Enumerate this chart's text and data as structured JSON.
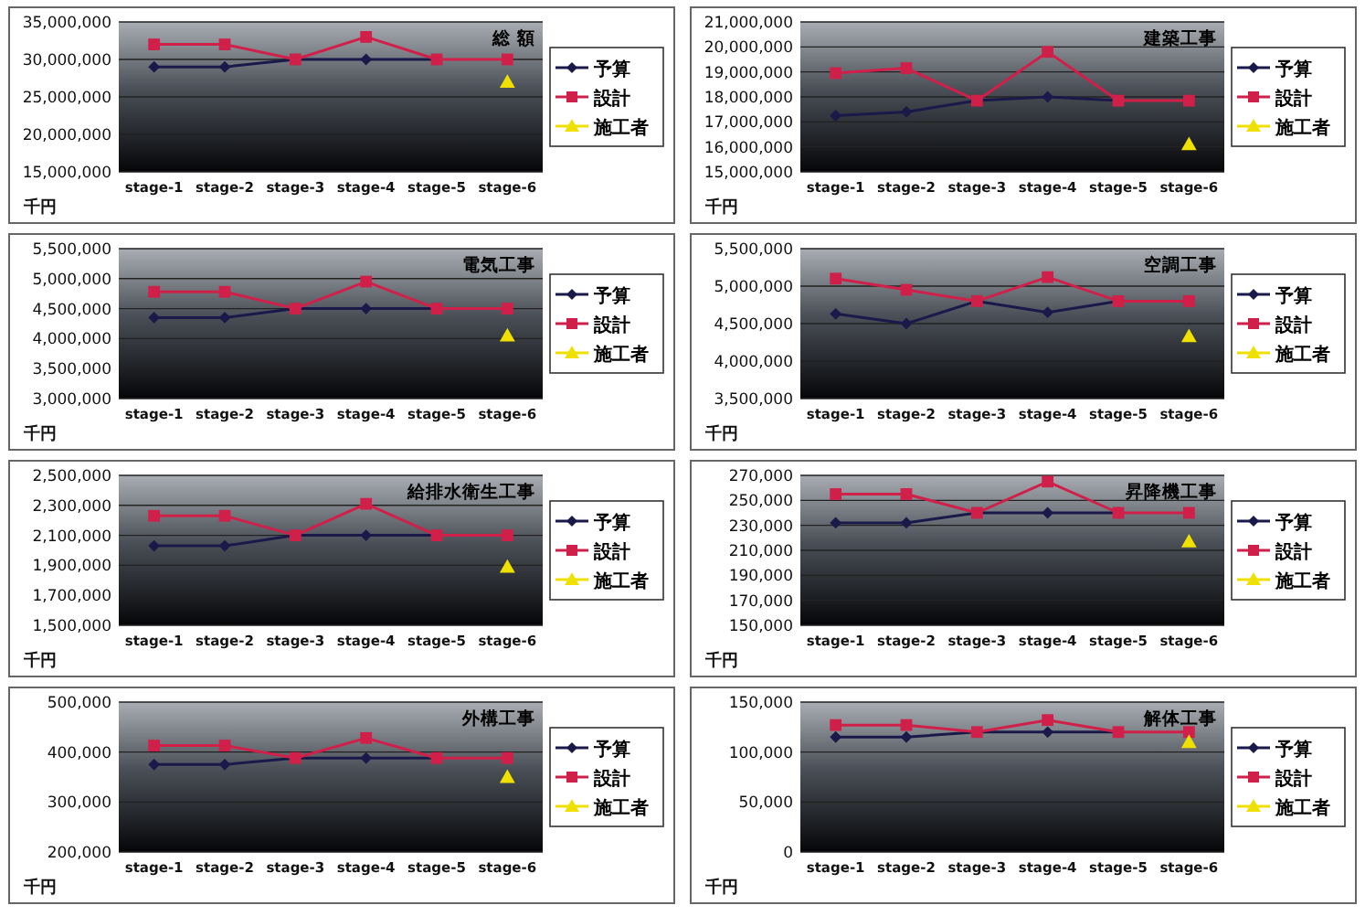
{
  "chart_data": [
    {
      "type": "line",
      "title": "総 額",
      "ylabel": "千円",
      "categories": [
        "stage-1",
        "stage-2",
        "stage-3",
        "stage-4",
        "stage-5",
        "stage-6"
      ],
      "ylim": [
        15000000,
        35000000
      ],
      "yticks": [
        {
          "value": 15000000,
          "label": "15,000,000"
        },
        {
          "value": 20000000,
          "label": "20,000,000"
        },
        {
          "value": 25000000,
          "label": "25,000,000"
        },
        {
          "value": 30000000,
          "label": "30,000,000"
        },
        {
          "value": 35000000,
          "label": "35,000,000"
        }
      ],
      "grid": "y",
      "legend": "right",
      "series": [
        {
          "name": "予算",
          "color": "#1a1a4a",
          "marker": "diamond",
          "values": [
            29000000,
            29000000,
            30000000,
            30000000,
            30000000,
            null
          ]
        },
        {
          "name": "設計",
          "color": "#d0204a",
          "marker": "square",
          "values": [
            32000000,
            32000000,
            30000000,
            33000000,
            30000000,
            30000000
          ]
        },
        {
          "name": "施工者",
          "color": "#f0e000",
          "marker": "triangle",
          "values": [
            null,
            null,
            null,
            null,
            null,
            27000000
          ]
        }
      ]
    },
    {
      "type": "line",
      "title": "建築工事",
      "ylabel": "千円",
      "categories": [
        "stage-1",
        "stage-2",
        "stage-3",
        "stage-4",
        "stage-5",
        "stage-6"
      ],
      "ylim": [
        15000000,
        21000000
      ],
      "yticks": [
        {
          "value": 15000000,
          "label": "15,000,000"
        },
        {
          "value": 16000000,
          "label": "16,000,000"
        },
        {
          "value": 17000000,
          "label": "17,000,000"
        },
        {
          "value": 18000000,
          "label": "18,000,000"
        },
        {
          "value": 19000000,
          "label": "19,000,000"
        },
        {
          "value": 20000000,
          "label": "20,000,000"
        },
        {
          "value": 21000000,
          "label": "21,000,000"
        }
      ],
      "grid": "y",
      "legend": "right",
      "series": [
        {
          "name": "予算",
          "color": "#1a1a4a",
          "marker": "diamond",
          "values": [
            17250000,
            17400000,
            17850000,
            18000000,
            17850000,
            null
          ]
        },
        {
          "name": "設計",
          "color": "#d0204a",
          "marker": "square",
          "values": [
            18950000,
            19150000,
            17850000,
            19800000,
            17850000,
            17850000
          ]
        },
        {
          "name": "施工者",
          "color": "#f0e000",
          "marker": "triangle",
          "values": [
            null,
            null,
            null,
            null,
            null,
            16100000
          ]
        }
      ]
    },
    {
      "type": "line",
      "title": "電気工事",
      "ylabel": "千円",
      "categories": [
        "stage-1",
        "stage-2",
        "stage-3",
        "stage-4",
        "stage-5",
        "stage-6"
      ],
      "ylim": [
        3000000,
        5500000
      ],
      "yticks": [
        {
          "value": 3000000,
          "label": "3,000,000"
        },
        {
          "value": 3500000,
          "label": "3,500,000"
        },
        {
          "value": 4000000,
          "label": "4,000,000"
        },
        {
          "value": 4500000,
          "label": "4,500,000"
        },
        {
          "value": 5000000,
          "label": "5,000,000"
        },
        {
          "value": 5500000,
          "label": "5,500,000"
        }
      ],
      "grid": "y",
      "legend": "right",
      "series": [
        {
          "name": "予算",
          "color": "#1a1a4a",
          "marker": "diamond",
          "values": [
            4350000,
            4350000,
            4500000,
            4500000,
            4500000,
            null
          ]
        },
        {
          "name": "設計",
          "color": "#d0204a",
          "marker": "square",
          "values": [
            4780000,
            4780000,
            4500000,
            4950000,
            4500000,
            4500000
          ]
        },
        {
          "name": "施工者",
          "color": "#f0e000",
          "marker": "triangle",
          "values": [
            null,
            null,
            null,
            null,
            null,
            4050000
          ]
        }
      ]
    },
    {
      "type": "line",
      "title": "空調工事",
      "ylabel": "千円",
      "categories": [
        "stage-1",
        "stage-2",
        "stage-3",
        "stage-4",
        "stage-5",
        "stage-6"
      ],
      "ylim": [
        3500000,
        5500000
      ],
      "yticks": [
        {
          "value": 3500000,
          "label": "3,500,000"
        },
        {
          "value": 4000000,
          "label": "4,000,000"
        },
        {
          "value": 4500000,
          "label": "4,500,000"
        },
        {
          "value": 5000000,
          "label": "5,000,000"
        },
        {
          "value": 5500000,
          "label": "5,500,000"
        }
      ],
      "grid": "y",
      "legend": "right",
      "series": [
        {
          "name": "予算",
          "color": "#1a1a4a",
          "marker": "diamond",
          "values": [
            4630000,
            4500000,
            4800000,
            4650000,
            4800000,
            null
          ]
        },
        {
          "name": "設計",
          "color": "#d0204a",
          "marker": "square",
          "values": [
            5100000,
            4950000,
            4800000,
            5120000,
            4800000,
            4800000
          ]
        },
        {
          "name": "施工者",
          "color": "#f0e000",
          "marker": "triangle",
          "values": [
            null,
            null,
            null,
            null,
            null,
            4330000
          ]
        }
      ]
    },
    {
      "type": "line",
      "title": "給排水衛生工事",
      "ylabel": "千円",
      "categories": [
        "stage-1",
        "stage-2",
        "stage-3",
        "stage-4",
        "stage-5",
        "stage-6"
      ],
      "ylim": [
        1500000,
        2500000
      ],
      "yticks": [
        {
          "value": 1500000,
          "label": "1,500,000"
        },
        {
          "value": 1700000,
          "label": "1,700,000"
        },
        {
          "value": 1900000,
          "label": "1,900,000"
        },
        {
          "value": 2100000,
          "label": "2,100,000"
        },
        {
          "value": 2300000,
          "label": "2,300,000"
        },
        {
          "value": 2500000,
          "label": "2,500,000"
        }
      ],
      "grid": "y",
      "legend": "right",
      "series": [
        {
          "name": "予算",
          "color": "#1a1a4a",
          "marker": "diamond",
          "values": [
            2030000,
            2030000,
            2100000,
            2100000,
            2100000,
            null
          ]
        },
        {
          "name": "設計",
          "color": "#d0204a",
          "marker": "square",
          "values": [
            2230000,
            2230000,
            2100000,
            2310000,
            2100000,
            2100000
          ]
        },
        {
          "name": "施工者",
          "color": "#f0e000",
          "marker": "triangle",
          "values": [
            null,
            null,
            null,
            null,
            null,
            1890000
          ]
        }
      ]
    },
    {
      "type": "line",
      "title": "昇降機工事",
      "ylabel": "千円",
      "categories": [
        "stage-1",
        "stage-2",
        "stage-3",
        "stage-4",
        "stage-5",
        "stage-6"
      ],
      "ylim": [
        150000,
        270000
      ],
      "yticks": [
        {
          "value": 150000,
          "label": "150,000"
        },
        {
          "value": 170000,
          "label": "170,000"
        },
        {
          "value": 190000,
          "label": "190,000"
        },
        {
          "value": 210000,
          "label": "210,000"
        },
        {
          "value": 230000,
          "label": "230,000"
        },
        {
          "value": 250000,
          "label": "250,000"
        },
        {
          "value": 270000,
          "label": "270,000"
        }
      ],
      "grid": "y",
      "legend": "right",
      "series": [
        {
          "name": "予算",
          "color": "#1a1a4a",
          "marker": "diamond",
          "values": [
            232000,
            232000,
            240000,
            240000,
            240000,
            null
          ]
        },
        {
          "name": "設計",
          "color": "#d0204a",
          "marker": "square",
          "values": [
            255000,
            255000,
            240000,
            265000,
            240000,
            240000
          ]
        },
        {
          "name": "施工者",
          "color": "#f0e000",
          "marker": "triangle",
          "values": [
            null,
            null,
            null,
            null,
            null,
            217000
          ]
        }
      ]
    },
    {
      "type": "line",
      "title": "外構工事",
      "ylabel": "千円",
      "categories": [
        "stage-1",
        "stage-2",
        "stage-3",
        "stage-4",
        "stage-5",
        "stage-6"
      ],
      "ylim": [
        200000,
        500000
      ],
      "yticks": [
        {
          "value": 200000,
          "label": "200,000"
        },
        {
          "value": 300000,
          "label": "300,000"
        },
        {
          "value": 400000,
          "label": "400,000"
        },
        {
          "value": 500000,
          "label": "500,000"
        }
      ],
      "grid": "y",
      "legend": "right",
      "series": [
        {
          "name": "予算",
          "color": "#1a1a4a",
          "marker": "diamond",
          "values": [
            375000,
            375000,
            388000,
            388000,
            388000,
            null
          ]
        },
        {
          "name": "設計",
          "color": "#d0204a",
          "marker": "square",
          "values": [
            413000,
            413000,
            388000,
            428000,
            388000,
            388000
          ]
        },
        {
          "name": "施工者",
          "color": "#f0e000",
          "marker": "triangle",
          "values": [
            null,
            null,
            null,
            null,
            null,
            350000
          ]
        }
      ]
    },
    {
      "type": "line",
      "title": "解体工事",
      "ylabel": "千円",
      "categories": [
        "stage-1",
        "stage-2",
        "stage-3",
        "stage-4",
        "stage-5",
        "stage-6"
      ],
      "ylim": [
        0,
        150000
      ],
      "yticks": [
        0,
        {
          "value": 50000,
          "label": "50,000"
        },
        {
          "value": 100000,
          "label": "100,000"
        },
        {
          "value": 150000,
          "label": "150,000"
        }
      ],
      "grid": "y",
      "legend": "right",
      "series": [
        {
          "name": "予算",
          "color": "#1a1a4a",
          "marker": "diamond",
          "values": [
            115000,
            115000,
            120000,
            120000,
            120000,
            null
          ]
        },
        {
          "name": "設計",
          "color": "#d0204a",
          "marker": "square",
          "values": [
            127000,
            127000,
            120000,
            132000,
            120000,
            120000
          ]
        },
        {
          "name": "施工者",
          "color": "#f0e000",
          "marker": "triangle",
          "values": [
            null,
            null,
            null,
            null,
            null,
            110000
          ]
        }
      ]
    }
  ]
}
